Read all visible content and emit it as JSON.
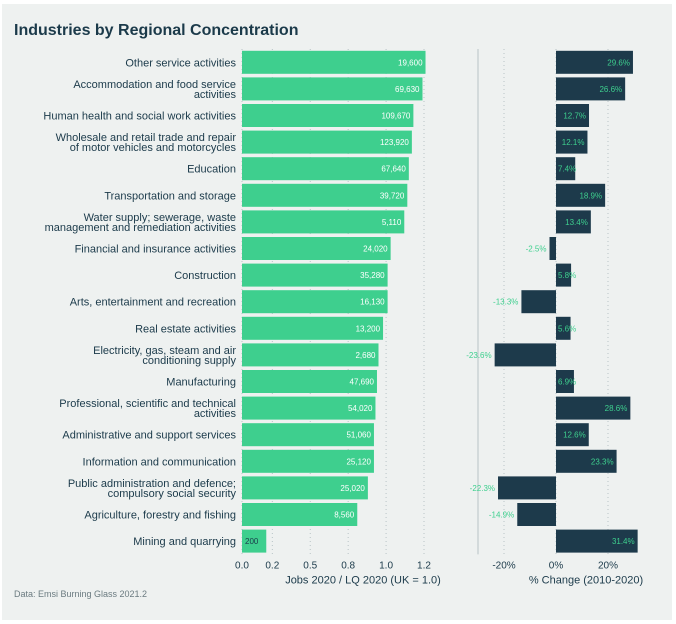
{
  "title": "Industries by Regional Concentration",
  "source": "Data: Emsi Burning Glass 2021.2",
  "colors": {
    "lq_bar": "#3ecf8e",
    "change_bar": "#1d3a4b",
    "grid": "#b8c4c6"
  },
  "chart_data": [
    {
      "type": "bar",
      "orientation": "horizontal",
      "xlabel": "Jobs 2020 / LQ 2020 (UK = 1.0)",
      "xlim": [
        0.0,
        1.2
      ],
      "ticks": [
        "0.0",
        "0.2",
        "0.5",
        "0.8",
        "1.0",
        "1.2"
      ],
      "grid": "vertical dotted",
      "categories": [
        "Other service activities",
        "Accommodation and food service activities",
        "Human health and social work activities",
        "Wholesale and retail trade and repair of motor vehicles and motorcycles",
        "Education",
        "Transportation and storage",
        "Water supply; sewerage, waste management and remediation activities",
        "Financial and insurance activities",
        "Construction",
        "Arts, entertainment and recreation",
        "Real estate activities",
        "Electricity, gas, steam and air conditioning supply",
        "Manufacturing",
        "Professional, scientific and technical activities",
        "Administrative and support services",
        "Information and communication",
        "Public administration and defence; compulsory social security",
        "Agriculture, forestry and fishing",
        "Mining and quarrying"
      ],
      "category_lines": [
        [
          "Other service activities"
        ],
        [
          "Accommodation and food service",
          "activities"
        ],
        [
          "Human health and social work activities"
        ],
        [
          "Wholesale and retail trade and repair",
          "of motor vehicles and motorcycles"
        ],
        [
          "Education"
        ],
        [
          "Transportation and storage"
        ],
        [
          "Water supply; sewerage, waste",
          "management and remediation activities"
        ],
        [
          "Financial and insurance activities"
        ],
        [
          "Construction"
        ],
        [
          "Arts, entertainment and recreation"
        ],
        [
          "Real estate activities"
        ],
        [
          "Electricity, gas, steam and air",
          "conditioning supply"
        ],
        [
          "Manufacturing"
        ],
        [
          "Professional, scientific and technical",
          "activities"
        ],
        [
          "Administrative and support services"
        ],
        [
          "Information and communication"
        ],
        [
          "Public administration and defence;",
          "compulsory social security"
        ],
        [
          "Agriculture, forestry and fishing"
        ],
        [
          "Mining and quarrying"
        ]
      ],
      "values": [
        1.21,
        1.19,
        1.13,
        1.12,
        1.1,
        1.09,
        1.07,
        0.98,
        0.96,
        0.96,
        0.93,
        0.9,
        0.89,
        0.88,
        0.87,
        0.87,
        0.83,
        0.76,
        0.16
      ],
      "data_labels": [
        "19,600",
        "69,630",
        "109,670",
        "123,920",
        "67,640",
        "39,720",
        "5,110",
        "24,020",
        "35,280",
        "16,130",
        "13,200",
        "2,680",
        "47,690",
        "54,020",
        "51,060",
        "25,120",
        "25,020",
        "8,560",
        "200"
      ]
    },
    {
      "type": "bar",
      "orientation": "horizontal",
      "xlabel": "% Change (2010-2020)",
      "xlim": [
        -30,
        40
      ],
      "ticks": [
        "-20%",
        "0%",
        "20%"
      ],
      "grid": "vertical dotted",
      "values": [
        29.6,
        26.6,
        12.7,
        12.1,
        7.4,
        18.9,
        13.4,
        -2.5,
        5.8,
        -13.3,
        5.6,
        -23.6,
        6.9,
        28.6,
        12.6,
        23.3,
        -22.3,
        -14.9,
        31.4
      ],
      "data_labels": [
        "29.6%",
        "26.6%",
        "12.7%",
        "12.1%",
        "7.4%",
        "18.9%",
        "13.4%",
        "-2.5%",
        "5.8%",
        "-13.3%",
        "5.6%",
        "-23.6%",
        "6.9%",
        "28.6%",
        "12.6%",
        "23.3%",
        "-22.3%",
        "-14.9%",
        "31.4%"
      ]
    }
  ]
}
